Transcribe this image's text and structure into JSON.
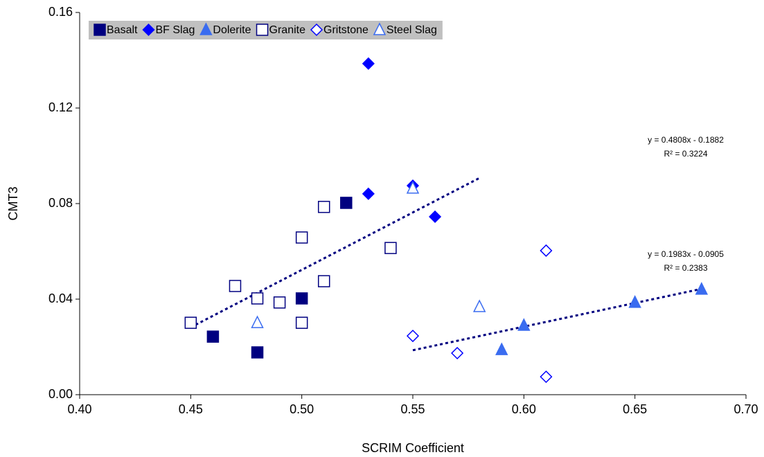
{
  "chart_data": {
    "type": "scatter",
    "x_label": "SCRIM Coefficient",
    "y_label": "CMT3",
    "xlim": [
      0.4,
      0.7
    ],
    "xticks": [
      {
        "value": 0.4,
        "label": "0.40"
      },
      {
        "value": 0.45,
        "label": "0.45"
      },
      {
        "value": 0.5,
        "label": "0.50"
      },
      {
        "value": 0.55,
        "label": "0.55"
      },
      {
        "value": 0.6,
        "label": "0.60"
      },
      {
        "value": 0.65,
        "label": "0.65"
      },
      {
        "value": 0.7,
        "label": "0.70"
      }
    ],
    "ylim": [
      0,
      0.16
    ],
    "yticks": [
      {
        "value": 0,
        "label": "0.00"
      },
      {
        "value": 0.04,
        "label": "0.04"
      },
      {
        "value": 0.08,
        "label": "0.08"
      },
      {
        "value": 0.12,
        "label": "0.12"
      },
      {
        "value": 0.16,
        "label": "0.16"
      }
    ],
    "legend": "top-left",
    "series": [
      {
        "name": "Basalt",
        "color": "#000080",
        "marker": "square",
        "filled": true,
        "x": [
          0.46,
          0.48,
          0.5,
          0.52
        ],
        "values": [
          0.0243,
          0.0177,
          0.0403,
          0.0803
        ]
      },
      {
        "name": "BF Slag",
        "color": "#0000ff",
        "marker": "diamond",
        "filled": true,
        "x": [
          0.53,
          0.53,
          0.55,
          0.56
        ],
        "values": [
          0.1386,
          0.0841,
          0.0875,
          0.0745
        ]
      },
      {
        "name": "Dolerite",
        "color": "#3a6cf0",
        "marker": "triangle",
        "filled": true,
        "x": [
          0.59,
          0.6,
          0.65,
          0.68
        ],
        "values": [
          0.0188,
          0.029,
          0.0386,
          0.0441
        ]
      },
      {
        "name": "Granite",
        "color": "#000080",
        "marker": "square",
        "filled": false,
        "x": [
          0.45,
          0.47,
          0.48,
          0.49,
          0.5,
          0.5,
          0.51,
          0.51,
          0.54
        ],
        "values": [
          0.0301,
          0.0455,
          0.0403,
          0.0386,
          0.0658,
          0.0301,
          0.0786,
          0.0475,
          0.0614
        ]
      },
      {
        "name": "Gritstone",
        "color": "#0000ff",
        "marker": "diamond",
        "filled": false,
        "x": [
          0.55,
          0.57,
          0.61,
          0.61
        ],
        "values": [
          0.0246,
          0.0174,
          0.0603,
          0.0075
        ]
      },
      {
        "name": "Steel Slag",
        "color": "#3a6cf0",
        "marker": "triangle",
        "filled": false,
        "x": [
          0.48,
          0.55,
          0.58
        ],
        "values": [
          0.0301,
          0.0864,
          0.0368
        ]
      }
    ],
    "trendlines": [
      {
        "color": "#000080",
        "x": [
          0.45,
          0.58
        ],
        "values": [
          0.0282,
          0.0907
        ],
        "equation": "y = 0.4808x - 0.1882",
        "r2": "R² = 0.3224"
      },
      {
        "color": "#000080",
        "x": [
          0.55,
          0.68
        ],
        "values": [
          0.0186,
          0.0443
        ],
        "equation": "y = 0.1983x - 0.0905",
        "r2": "R² = 0.2383"
      }
    ]
  }
}
